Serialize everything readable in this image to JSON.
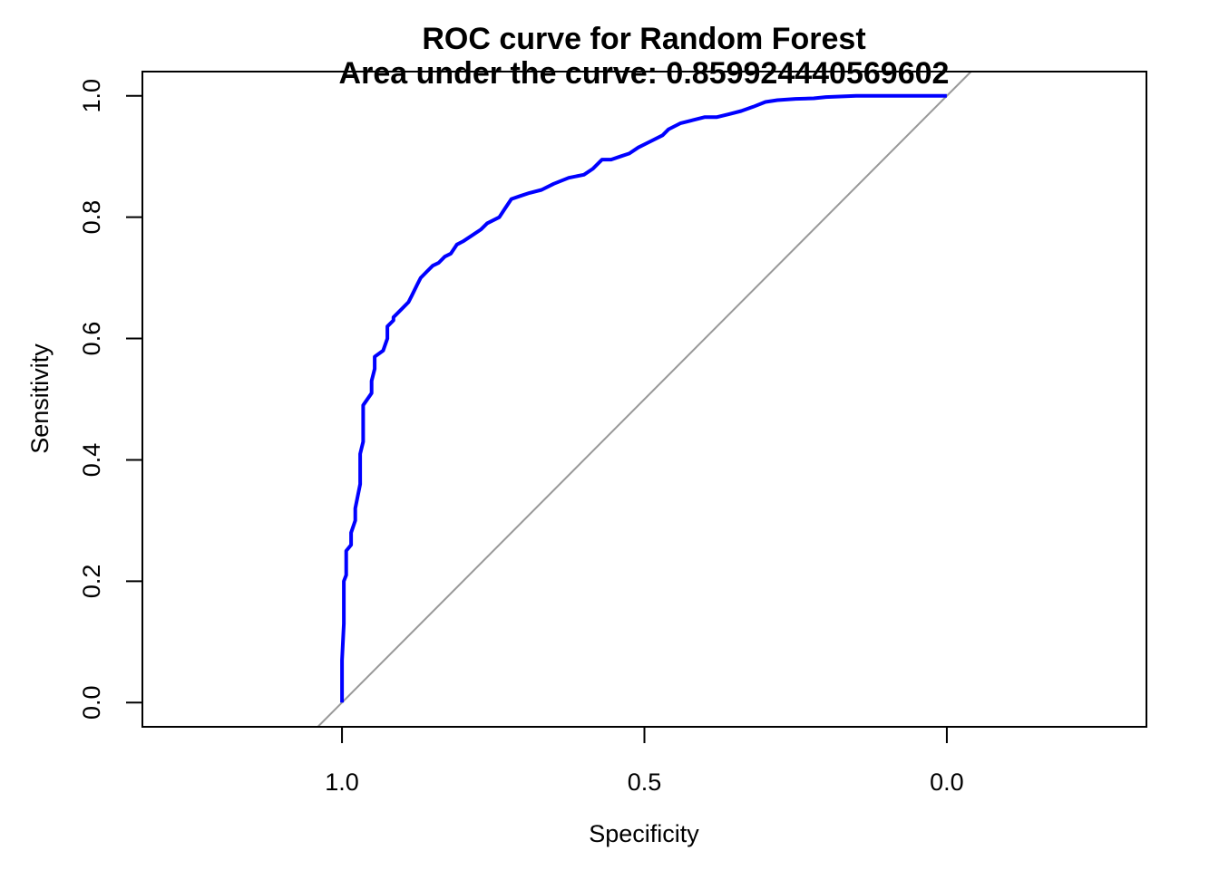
{
  "chart_data": {
    "type": "line",
    "title": "ROC curve for Random Forest",
    "subtitle": "Area under the curve:  0.859924440569602",
    "xlabel": "Specificity",
    "ylabel": "Sensitivity",
    "x_reversed": true,
    "xlim": [
      1.33,
      -0.33
    ],
    "ylim": [
      -0.04,
      1.04
    ],
    "x_ticks": [
      1.0,
      0.5,
      0.0
    ],
    "x_tick_labels": [
      "1.0",
      "0.5",
      "0.0"
    ],
    "y_ticks": [
      0.0,
      0.2,
      0.4,
      0.6,
      0.8,
      1.0
    ],
    "y_tick_labels": [
      "0.0",
      "0.2",
      "0.4",
      "0.6",
      "0.8",
      "1.0"
    ],
    "grid": false,
    "colors": {
      "curve": "#0000ff",
      "reference": "#999999",
      "axes": "#000000"
    },
    "series": [
      {
        "style": "roc-curve",
        "x": [
          1.0,
          1.0,
          0.997,
          0.997,
          0.993,
          0.993,
          0.985,
          0.985,
          0.978,
          0.978,
          0.97,
          0.97,
          0.965,
          0.965,
          0.951,
          0.951,
          0.946,
          0.946,
          0.932,
          0.925,
          0.925,
          0.915,
          0.915,
          0.91,
          0.9,
          0.89,
          0.885,
          0.875,
          0.87,
          0.86,
          0.85,
          0.84,
          0.83,
          0.82,
          0.81,
          0.8,
          0.785,
          0.77,
          0.76,
          0.74,
          0.73,
          0.72,
          0.705,
          0.69,
          0.67,
          0.65,
          0.625,
          0.6,
          0.585,
          0.57,
          0.555,
          0.54,
          0.525,
          0.51,
          0.49,
          0.47,
          0.46,
          0.44,
          0.42,
          0.4,
          0.38,
          0.36,
          0.34,
          0.32,
          0.3,
          0.28,
          0.25,
          0.22,
          0.2,
          0.15,
          0.1,
          0.0
        ],
        "y": [
          0.0,
          0.07,
          0.13,
          0.2,
          0.21,
          0.25,
          0.26,
          0.28,
          0.3,
          0.32,
          0.36,
          0.41,
          0.43,
          0.49,
          0.51,
          0.53,
          0.55,
          0.57,
          0.58,
          0.6,
          0.62,
          0.63,
          0.635,
          0.64,
          0.65,
          0.66,
          0.67,
          0.69,
          0.7,
          0.71,
          0.72,
          0.725,
          0.735,
          0.74,
          0.755,
          0.76,
          0.77,
          0.78,
          0.79,
          0.8,
          0.815,
          0.83,
          0.835,
          0.84,
          0.845,
          0.855,
          0.865,
          0.87,
          0.88,
          0.895,
          0.895,
          0.9,
          0.905,
          0.915,
          0.925,
          0.935,
          0.945,
          0.955,
          0.96,
          0.965,
          0.965,
          0.97,
          0.975,
          0.982,
          0.99,
          0.993,
          0.995,
          0.996,
          0.998,
          1.0,
          1.0,
          1.0
        ]
      }
    ],
    "reference_line": {
      "intercept": 1.0,
      "slope": 1.0
    }
  }
}
